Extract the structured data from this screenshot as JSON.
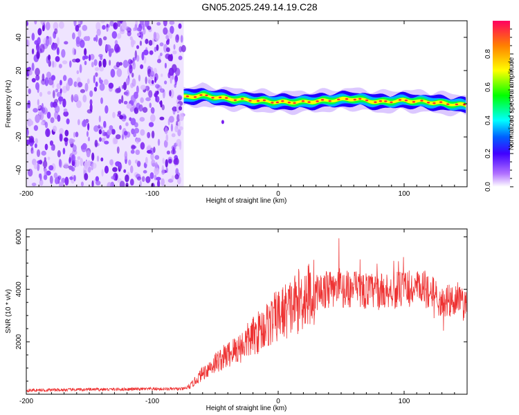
{
  "title": "GN05.2025.249.14.19.C28",
  "chart_data": [
    {
      "type": "heatmap",
      "xlabel": "Height of straight line (km)",
      "ylabel": "Frequency (Hz)",
      "xlim": [
        -200,
        150
      ],
      "ylim": [
        -50,
        50
      ],
      "xticks": [
        "-200",
        "-100",
        "0",
        "100"
      ],
      "yticks": [
        "-40",
        "-20",
        "0",
        "20",
        "40"
      ],
      "colorbar": {
        "label": "Normalized spectral amplitude",
        "range": [
          0,
          1
        ],
        "ticks": [
          "0.0",
          "0.2",
          "0.4",
          "0.6",
          "0.8"
        ]
      },
      "noise_region_x": [
        -200,
        -75
      ],
      "signal_band": {
        "x": [
          -75,
          -60,
          -40,
          -20,
          0,
          20,
          40,
          60,
          80,
          100,
          120,
          150
        ],
        "freq": [
          4,
          5,
          3,
          2,
          1,
          1,
          2,
          3,
          1,
          2,
          1,
          -1
        ]
      }
    },
    {
      "type": "line",
      "xlabel": "Height of straight line (km)",
      "ylabel": "SNR (10 * v/v)",
      "xlim": [
        -200,
        150
      ],
      "ylim": [
        0,
        6300
      ],
      "xticks": [
        "-200",
        "-100",
        "0",
        "100"
      ],
      "yticks": [
        "2000",
        "4000",
        "6000"
      ],
      "color": "#ee3333",
      "series": [
        {
          "name": "SNR",
          "x": [
            -200,
            -150,
            -100,
            -75,
            -70,
            -60,
            -50,
            -40,
            -30,
            -20,
            -10,
            0,
            10,
            20,
            30,
            40,
            60,
            80,
            100,
            120,
            130,
            140,
            150
          ],
          "values": [
            150,
            180,
            200,
            200,
            300,
            800,
            1200,
            1500,
            1800,
            2200,
            2600,
            3000,
            3300,
            3700,
            3900,
            4000,
            4000,
            3900,
            4000,
            4000,
            3500,
            3600,
            3300
          ]
        }
      ]
    }
  ]
}
